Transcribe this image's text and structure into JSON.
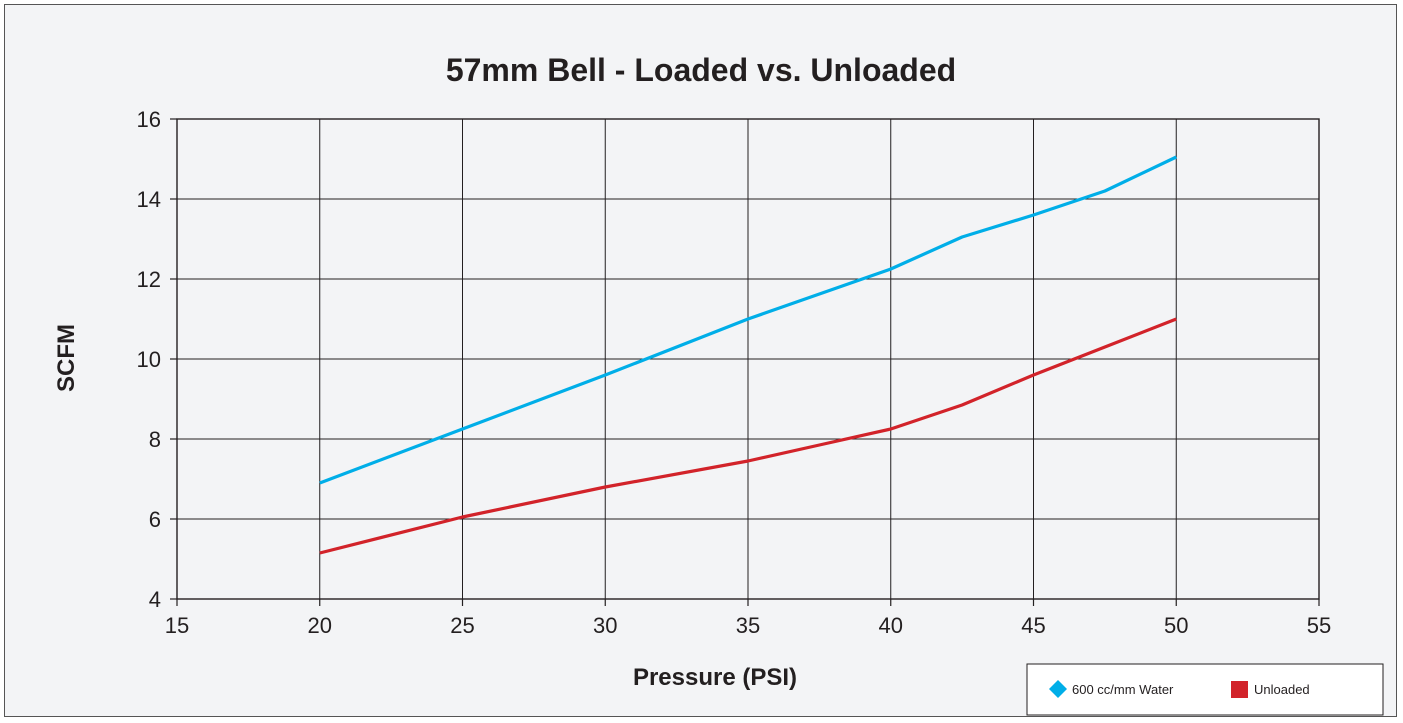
{
  "chart_data": {
    "type": "line",
    "title": "57mm Bell - Loaded vs. Unloaded",
    "xlabel": "Pressure (PSI)",
    "ylabel": "SCFM",
    "xlim": [
      15,
      55
    ],
    "ylim": [
      4,
      16
    ],
    "x_ticks": [
      "15",
      "20",
      "25",
      "30",
      "35",
      "40",
      "45",
      "50",
      "55"
    ],
    "y_ticks": [
      "4",
      "6",
      "8",
      "10",
      "12",
      "14",
      "16"
    ],
    "grid": true,
    "legend_position": "bottom-right",
    "series": [
      {
        "name": "600 cc/mm Water",
        "color": "#00aee8",
        "marker": "diamond",
        "x": [
          20,
          25,
          30,
          35,
          40,
          42.5,
          45,
          47.5,
          50
        ],
        "y": [
          6.9,
          8.25,
          9.6,
          11.0,
          12.25,
          13.05,
          13.6,
          14.2,
          15.05
        ]
      },
      {
        "name": "Unloaded",
        "color": "#d2232a",
        "marker": "square",
        "x": [
          20,
          25,
          30,
          35,
          37.5,
          40,
          42.5,
          45,
          47.5,
          50
        ],
        "y": [
          5.15,
          6.05,
          6.8,
          7.45,
          7.85,
          8.25,
          8.85,
          9.6,
          10.3,
          11.0
        ]
      }
    ]
  }
}
